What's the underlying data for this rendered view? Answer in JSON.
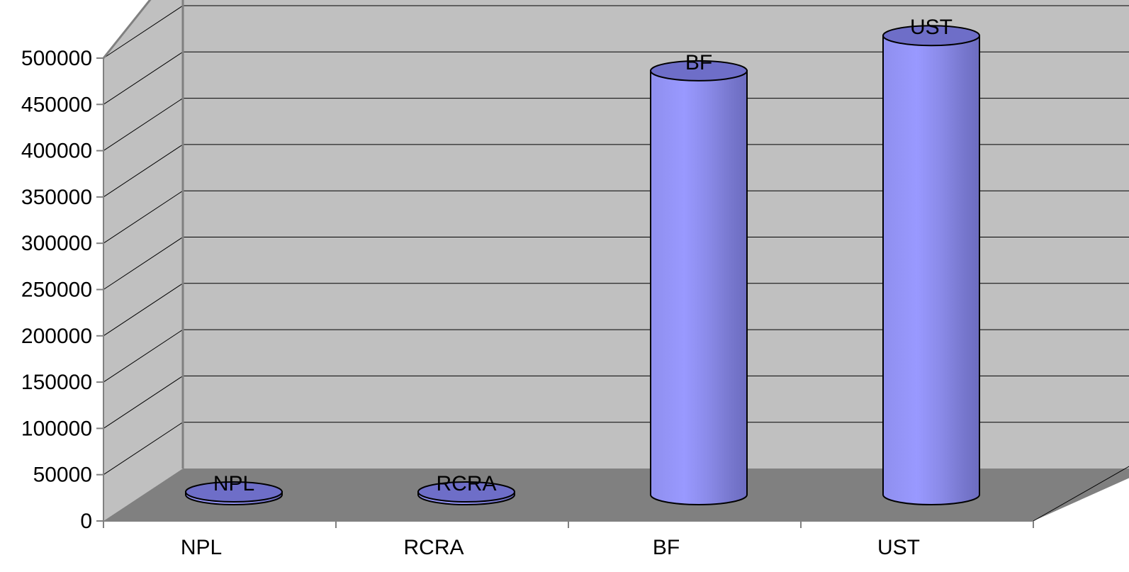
{
  "chart_data": {
    "type": "bar",
    "style": "3d-cylinder",
    "categories": [
      "NPL",
      "RCRA",
      "BF",
      "UST"
    ],
    "series": [
      {
        "values": [
          1300,
          2800,
          458000,
          496000
        ]
      }
    ],
    "data_labels": [
      "NPL",
      "RCRA",
      "BF",
      "UST"
    ],
    "y_ticks": [
      "0",
      "50000",
      "100000",
      "150000",
      "200000",
      "250000",
      "300000",
      "350000",
      "400000",
      "450000",
      "500000"
    ],
    "ylim": [
      0,
      500000
    ],
    "ystep": 50000,
    "grid": true,
    "legend": "none",
    "colors": {
      "bar_front": "#9999ff",
      "bar_shade": "#7070c0",
      "bar_top": "#6e6ec8",
      "back_wall": "#c0c0c0",
      "side_wall": "#c0c0c0",
      "floor": "#808080",
      "gridline": "#000000",
      "axis": "#808080"
    }
  }
}
